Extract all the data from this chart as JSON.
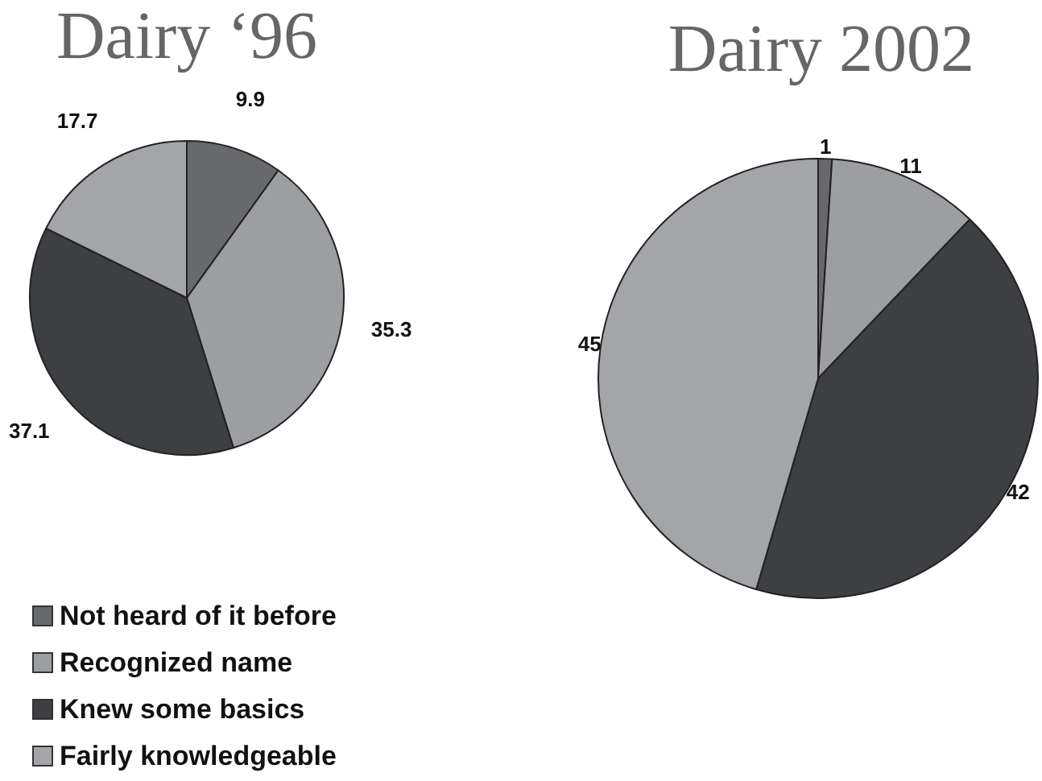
{
  "chart_data": [
    {
      "type": "pie",
      "title": "Dairy ‘96",
      "categories": [
        "Not heard of it before",
        "Recognized name",
        "Knew some basics",
        "Fairly knowledgeable"
      ],
      "values": [
        9.9,
        35.3,
        37.1,
        17.7
      ],
      "colors": [
        "#68696d",
        "#9d9ea2",
        "#3e3f42",
        "#a4a5a9"
      ],
      "data_labels": true,
      "legend": "bottom"
    },
    {
      "type": "pie",
      "title": "Dairy 2002",
      "categories": [
        null,
        null,
        null,
        null
      ],
      "values": [
        1,
        11,
        42,
        45
      ],
      "colors": [
        "#68696d",
        "#9d9ea2",
        "#3e3f42",
        "#a4a5a9"
      ],
      "data_labels": true
    }
  ]
}
